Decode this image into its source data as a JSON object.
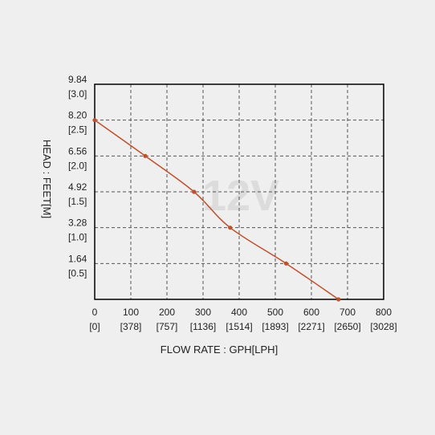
{
  "chart_data": {
    "type": "line",
    "xlabel": "FLOW RATE : GPH[LPH]",
    "ylabel": "HEAD : FEET[M]",
    "watermark": "12V",
    "xlim": [
      0,
      800
    ],
    "ylim": [
      0,
      9.84
    ],
    "x_ticks": [
      {
        "value": 0,
        "label": "0",
        "sublabel": "[0]"
      },
      {
        "value": 100,
        "label": "100",
        "sublabel": "[378]"
      },
      {
        "value": 200,
        "label": "200",
        "sublabel": "[757]"
      },
      {
        "value": 300,
        "label": "300",
        "sublabel": "[1136]"
      },
      {
        "value": 400,
        "label": "400",
        "sublabel": "[1514]"
      },
      {
        "value": 500,
        "label": "500",
        "sublabel": "[1893]"
      },
      {
        "value": 600,
        "label": "600",
        "sublabel": "[2271]"
      },
      {
        "value": 700,
        "label": "700",
        "sublabel": "[2650]"
      },
      {
        "value": 800,
        "label": "800",
        "sublabel": "[3028]"
      }
    ],
    "y_ticks": [
      {
        "value": 1.64,
        "label": "1.64",
        "sublabel": "[0.5]"
      },
      {
        "value": 3.28,
        "label": "3.28",
        "sublabel": "[1.0]"
      },
      {
        "value": 4.92,
        "label": "4.92",
        "sublabel": "[1.5]"
      },
      {
        "value": 6.56,
        "label": "6.56",
        "sublabel": "[2.0]"
      },
      {
        "value": 8.2,
        "label": "8.20",
        "sublabel": "[2.5]"
      },
      {
        "value": 9.84,
        "label": "9.84",
        "sublabel": "[3.0]"
      }
    ],
    "grid": true,
    "series": [
      {
        "color": "#c0502a",
        "points": [
          {
            "x": 0,
            "y": 8.2
          },
          {
            "x": 140,
            "y": 6.56
          },
          {
            "x": 275,
            "y": 4.92
          },
          {
            "x": 375,
            "y": 3.28
          },
          {
            "x": 530,
            "y": 1.64
          },
          {
            "x": 675,
            "y": 0
          }
        ]
      }
    ]
  }
}
